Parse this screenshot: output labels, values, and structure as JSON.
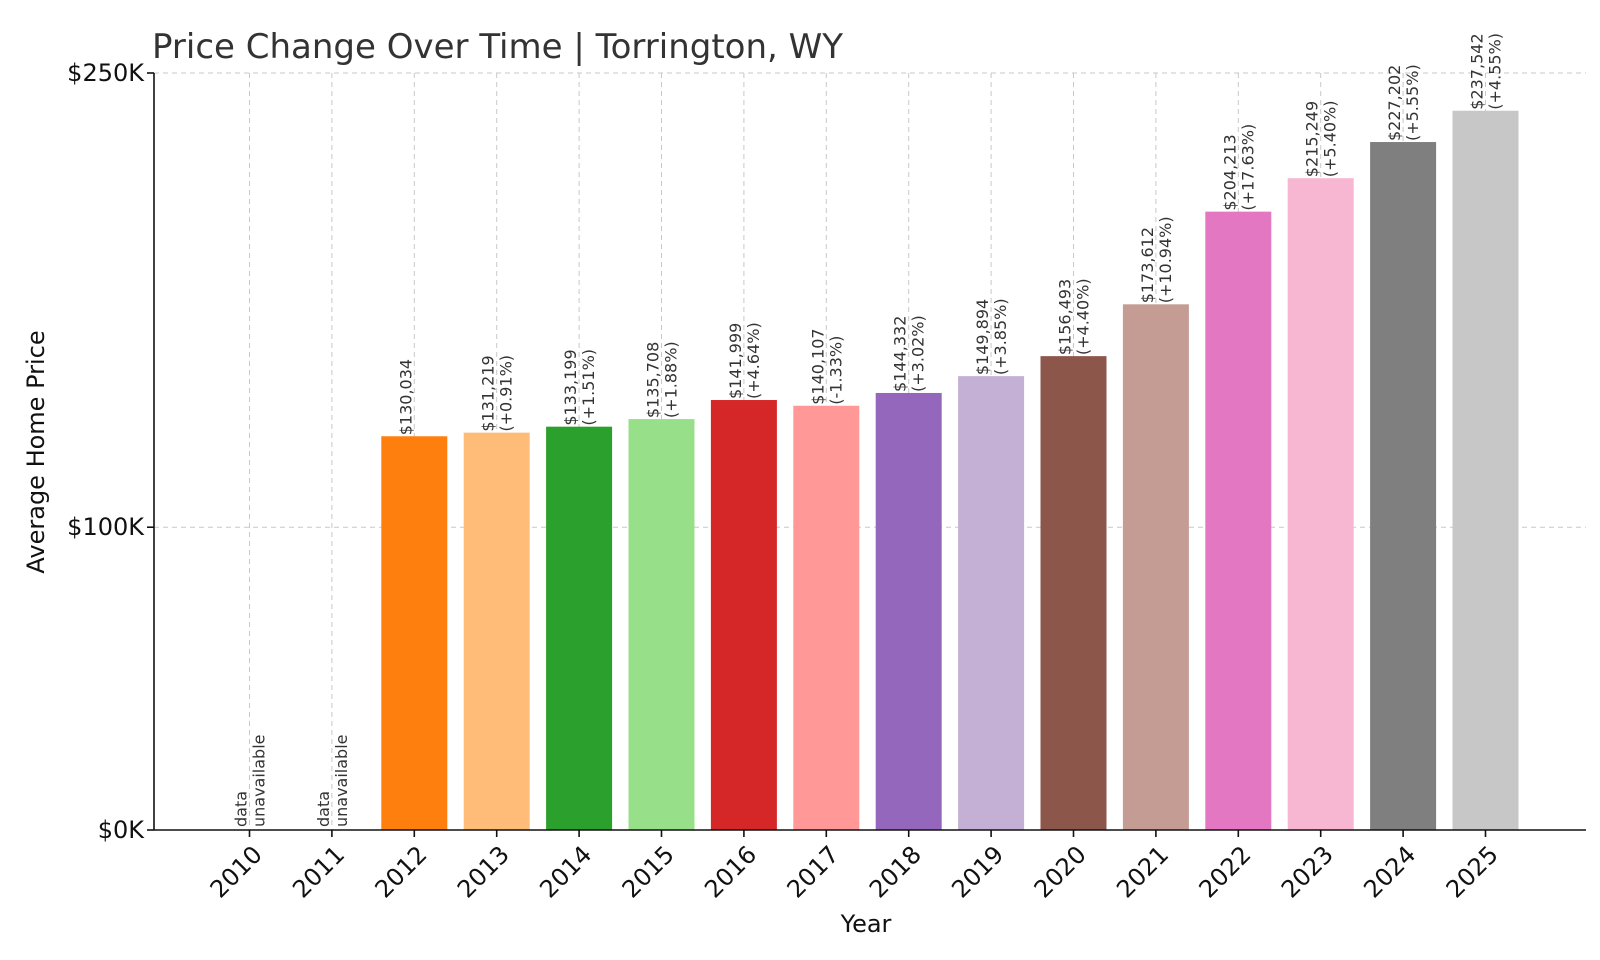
{
  "chart_data": {
    "type": "bar",
    "title": "Price Change Over Time | Torrington, WY",
    "xlabel": "Year",
    "ylabel": "Average Home Price",
    "ylim": [
      0,
      250000
    ],
    "yticks": [
      {
        "value": 0,
        "label": "$0K"
      },
      {
        "value": 100000,
        "label": "$100K"
      },
      {
        "value": 250000,
        "label": "$250K"
      }
    ],
    "grid": true,
    "categories": [
      "2010",
      "2011",
      "2012",
      "2013",
      "2014",
      "2015",
      "2016",
      "2017",
      "2018",
      "2019",
      "2020",
      "2021",
      "2022",
      "2023",
      "2024",
      "2025"
    ],
    "values": [
      null,
      null,
      130034,
      131219,
      133199,
      135708,
      141999,
      140107,
      144332,
      149894,
      156493,
      173612,
      204213,
      215249,
      227202,
      237542
    ],
    "price_labels": [
      "",
      "",
      "$130,034",
      "$131,219",
      "$133,199",
      "$135,708",
      "$141,999",
      "$140,107",
      "$144,332",
      "$149,894",
      "$156,493",
      "$173,612",
      "$204,213",
      "$215,249",
      "$227,202",
      "$237,542"
    ],
    "change_labels": [
      "",
      "",
      "",
      "(+0.91%)",
      "(+1.51%)",
      "(+1.88%)",
      "(+4.64%)",
      "(-1.33%)",
      "(+3.02%)",
      "(+3.85%)",
      "(+4.40%)",
      "(+10.94%)",
      "(+17.63%)",
      "(+5.40%)",
      "(+5.55%)",
      "(+4.55%)"
    ],
    "missing_label": [
      "data",
      "unavailable"
    ],
    "colors": [
      "#1f77b4",
      "#aec7e8",
      "#ff7f0e",
      "#ffbb78",
      "#2ca02c",
      "#98df8a",
      "#d62728",
      "#ff9896",
      "#9467bd",
      "#c5b0d5",
      "#8c564b",
      "#c49c94",
      "#e377c2",
      "#f7b6d2",
      "#7f7f7f",
      "#c7c7c7"
    ]
  }
}
